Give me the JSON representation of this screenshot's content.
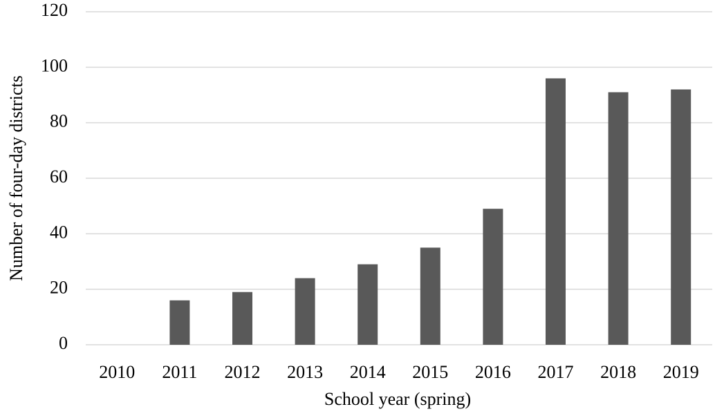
{
  "chart_data": {
    "type": "bar",
    "x_label": "School year (spring)",
    "y_label": "Number of four-day districts",
    "categories": [
      "2010",
      "2011",
      "2012",
      "2013",
      "2014",
      "2015",
      "2016",
      "2017",
      "2018",
      "2019"
    ],
    "values": [
      0,
      16,
      19,
      24,
      29,
      35,
      49,
      96,
      91,
      92
    ],
    "color": "#595959",
    "ylim": [
      0,
      120
    ],
    "yticks": [
      0,
      20,
      40,
      60,
      80,
      100,
      120
    ],
    "grid": true
  }
}
